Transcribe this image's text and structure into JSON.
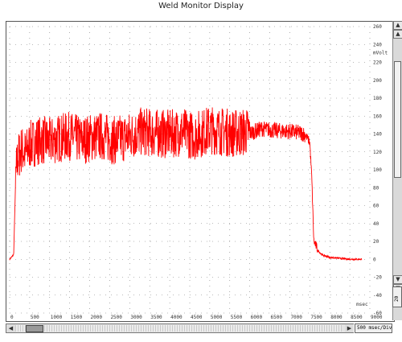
{
  "window": {
    "title": "Weld Monitor Display"
  },
  "y_unit": "mVolt",
  "x_unit": "msec",
  "controls": {
    "timebase": "500 msec/Div",
    "voltbase": "20"
  },
  "colors": {
    "trace": "#ff0000",
    "grid": "#777777"
  },
  "chart_data": {
    "type": "line",
    "title": "",
    "xlabel": "msec",
    "ylabel": "mVolt",
    "grid": true,
    "xlim": [
      0,
      9000
    ],
    "ylim": [
      -60,
      260
    ],
    "x_ticks": [
      "0",
      "500",
      "1000",
      "1500",
      "2000",
      "2500",
      "3000",
      "3500",
      "4000",
      "4500",
      "5000",
      "5500",
      "6000",
      "6500",
      "7000",
      "7500",
      "8000",
      "8500",
      "9000"
    ],
    "y_ticks": [
      "260",
      "240",
      "220",
      "200",
      "180",
      "160",
      "140",
      "120",
      "100",
      "80",
      "60",
      "40",
      "20",
      "0",
      "-20",
      "-40",
      "-60"
    ],
    "series": [
      {
        "x": [
          0,
          100,
          150,
          200,
          300,
          400,
          500,
          700,
          900,
          1000,
          1200,
          1500,
          1800,
          2000,
          2300,
          2600,
          3000,
          3300,
          3600,
          4000,
          4300,
          4600,
          5000,
          5300,
          5600,
          6000,
          6300,
          6600,
          7000,
          7300,
          7400,
          7500,
          7550,
          7600,
          7700,
          7800,
          8000,
          8500,
          9000
        ],
        "y": [
          0,
          5,
          90,
          110,
          120,
          115,
          125,
          130,
          130,
          128,
          132,
          135,
          130,
          133,
          135,
          130,
          135,
          140,
          138,
          137,
          140,
          135,
          142,
          140,
          138,
          140,
          145,
          143,
          142,
          140,
          138,
          130,
          90,
          20,
          10,
          5,
          2,
          0,
          0
        ]
      }
    ]
  }
}
